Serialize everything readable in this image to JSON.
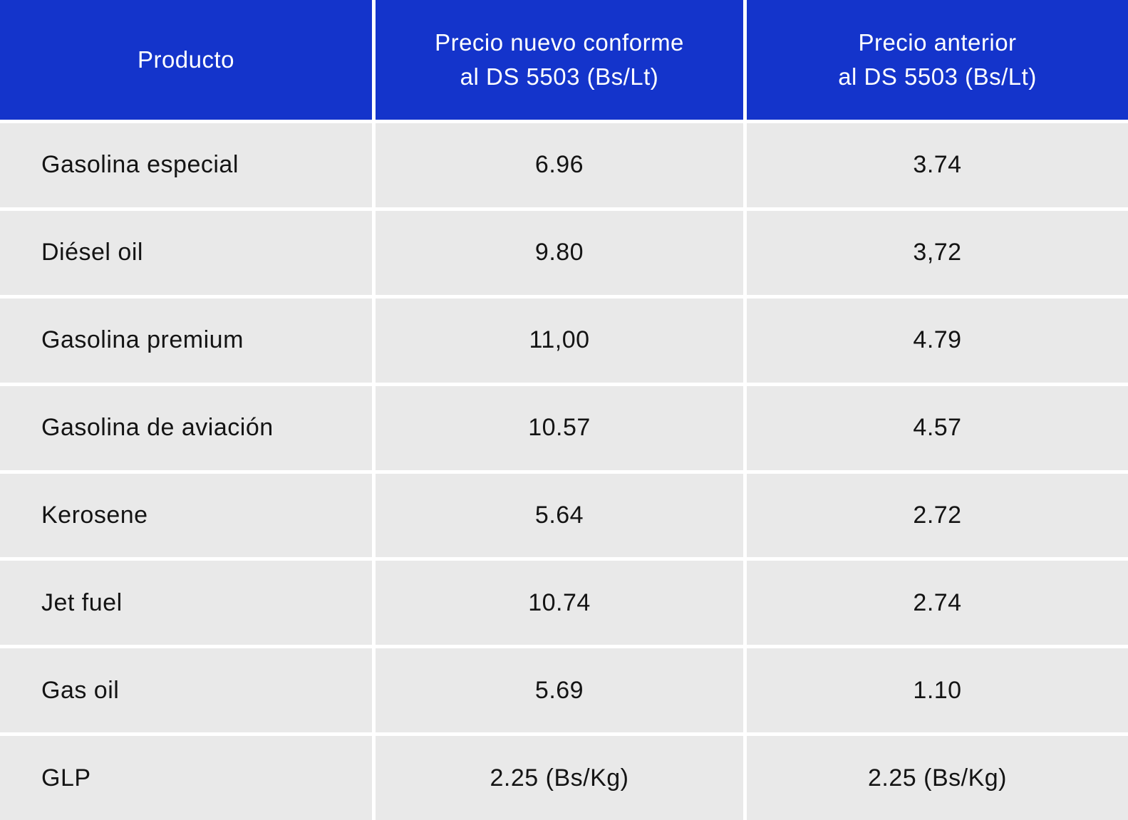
{
  "colors": {
    "header_bg": "#1434cb",
    "header_fg": "#ffffff",
    "row_bg": "#e9e9e9",
    "cell_fg": "#141414",
    "gap_bg": "#ffffff"
  },
  "table": {
    "header": {
      "producto": "Producto",
      "precio_nuevo": "Precio nuevo conforme\nal DS 5503 (Bs/Lt)",
      "precio_anterior": "Precio anterior\nal DS 5503 (Bs/Lt)"
    },
    "rows": [
      {
        "producto": "Gasolina especial",
        "nuevo": "6.96",
        "anterior": "3.74"
      },
      {
        "producto": "Diésel oil",
        "nuevo": "9.80",
        "anterior": "3,72"
      },
      {
        "producto": "Gasolina premium",
        "nuevo": "11,00",
        "anterior": "4.79"
      },
      {
        "producto": "Gasolina de aviación",
        "nuevo": "10.57",
        "anterior": "4.57"
      },
      {
        "producto": "Kerosene",
        "nuevo": "5.64",
        "anterior": "2.72"
      },
      {
        "producto": "Jet fuel",
        "nuevo": "10.74",
        "anterior": "2.74"
      },
      {
        "producto": "Gas oil",
        "nuevo": "5.69",
        "anterior": "1.10"
      },
      {
        "producto": "GLP",
        "nuevo": "2.25 (Bs/Kg)",
        "anterior": "2.25 (Bs/Kg)"
      }
    ]
  },
  "chart_data": {
    "type": "table",
    "title": "",
    "columns": [
      "Producto",
      "Precio nuevo conforme al DS 5503 (Bs/Lt)",
      "Precio anterior al DS 5503 (Bs/Lt)"
    ],
    "rows": [
      [
        "Gasolina especial",
        "6.96",
        "3.74"
      ],
      [
        "Diésel oil",
        "9.80",
        "3,72"
      ],
      [
        "Gasolina premium",
        "11,00",
        "4.79"
      ],
      [
        "Gasolina de aviación",
        "10.57",
        "4.57"
      ],
      [
        "Kerosene",
        "5.64",
        "2.72"
      ],
      [
        "Jet fuel",
        "10.74",
        "2.74"
      ],
      [
        "Gas oil",
        "5.69",
        "1.10"
      ],
      [
        "GLP",
        "2.25 (Bs/Kg)",
        "2.25 (Bs/Kg)"
      ]
    ],
    "layout_hints": {
      "header_style": "blue background, white centered text",
      "body_style": "light gray cells separated by white gridlines",
      "col1_align": "left",
      "col2_col3_align": "center"
    }
  }
}
